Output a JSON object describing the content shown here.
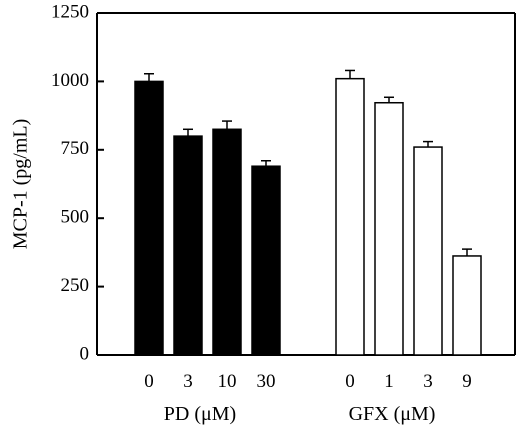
{
  "chart_data": {
    "type": "bar",
    "title": "",
    "ylabel": "MCP-1 (pg/mL)",
    "ylim": [
      0,
      1250
    ],
    "yticks": [
      0,
      250,
      500,
      750,
      1000,
      1250
    ],
    "grid": false,
    "legend": "none",
    "groups": [
      {
        "name": "PD (μM)",
        "fill": "#000000",
        "categories": [
          "0",
          "3",
          "10",
          "30"
        ],
        "values": [
          1000,
          800,
          825,
          690
        ],
        "errors": [
          28,
          25,
          30,
          20
        ]
      },
      {
        "name": "GFX (μM)",
        "fill": "#ffffff",
        "categories": [
          "0",
          "1",
          "3",
          "9"
        ],
        "values": [
          1010,
          922,
          760,
          362
        ],
        "errors": [
          30,
          20,
          20,
          25
        ]
      }
    ]
  }
}
